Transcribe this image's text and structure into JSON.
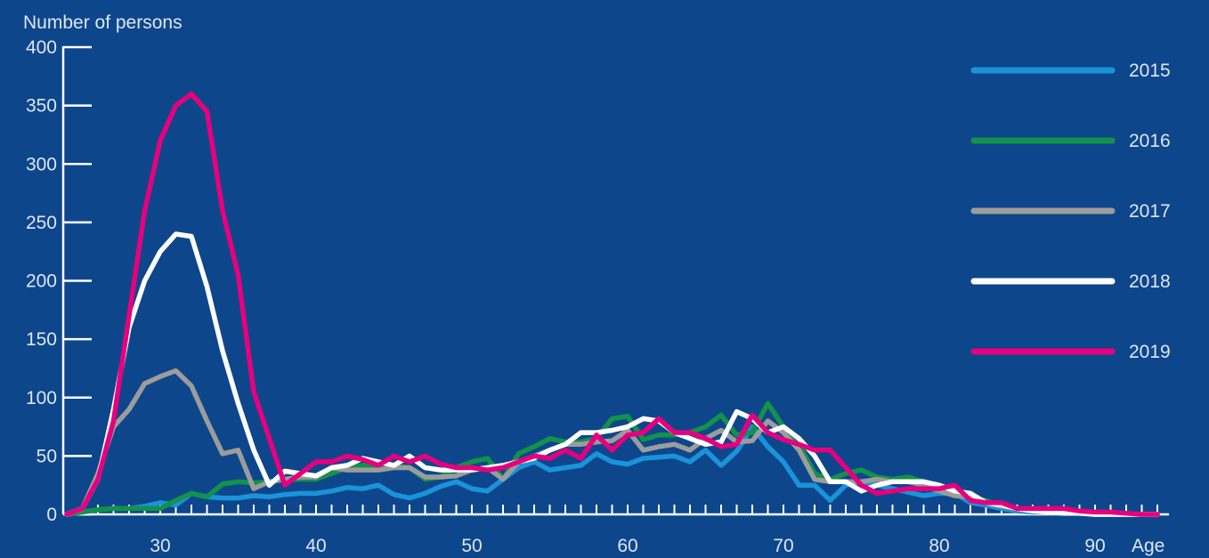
{
  "chart_data": {
    "type": "line",
    "title": "",
    "ylabel": "Number of persons",
    "xlabel": "Age",
    "xlim": [
      24,
      94
    ],
    "ylim": [
      0,
      400
    ],
    "x_ticks": [
      30,
      40,
      50,
      60,
      70,
      80,
      90
    ],
    "y_ticks": [
      0,
      50,
      100,
      150,
      200,
      250,
      300,
      350,
      400
    ],
    "grid": false,
    "legend_position": "right",
    "x": [
      24,
      25,
      26,
      27,
      28,
      29,
      30,
      31,
      32,
      33,
      34,
      35,
      36,
      37,
      38,
      39,
      40,
      41,
      42,
      43,
      44,
      45,
      46,
      47,
      48,
      49,
      50,
      51,
      52,
      53,
      54,
      55,
      56,
      57,
      58,
      59,
      60,
      61,
      62,
      63,
      64,
      65,
      66,
      67,
      68,
      69,
      70,
      71,
      72,
      73,
      74,
      75,
      76,
      77,
      78,
      79,
      80,
      81,
      82,
      83,
      84,
      85,
      86,
      87,
      88,
      89,
      90,
      91,
      92,
      93,
      94
    ],
    "series": [
      {
        "name": "2015",
        "color": "#1a93d9",
        "values": [
          0,
          2,
          4,
          5,
          5,
          7,
          10,
          8,
          18,
          15,
          14,
          14,
          16,
          15,
          17,
          18,
          18,
          20,
          23,
          22,
          25,
          17,
          14,
          18,
          24,
          28,
          22,
          20,
          30,
          40,
          45,
          38,
          40,
          42,
          52,
          45,
          43,
          48,
          49,
          50,
          45,
          55,
          42,
          54,
          75,
          58,
          45,
          25,
          25,
          12,
          25,
          28,
          25,
          22,
          19,
          16,
          18,
          18,
          10,
          8,
          5,
          3,
          2,
          2,
          1,
          1,
          0,
          0,
          0,
          0,
          0
        ]
      },
      {
        "name": "2016",
        "color": "#12924a",
        "values": [
          0,
          2,
          4,
          5,
          5,
          5,
          5,
          12,
          18,
          15,
          26,
          28,
          27,
          28,
          30,
          30,
          30,
          35,
          40,
          42,
          42,
          42,
          40,
          30,
          32,
          40,
          45,
          48,
          30,
          52,
          58,
          65,
          62,
          62,
          65,
          82,
          84,
          64,
          68,
          68,
          70,
          75,
          85,
          68,
          70,
          95,
          75,
          60,
          35,
          30,
          35,
          38,
          32,
          30,
          32,
          28,
          25,
          20,
          15,
          12,
          7,
          5,
          3,
          2,
          1,
          1,
          0,
          0,
          0,
          0,
          0
        ]
      },
      {
        "name": "2017",
        "color": "#9c9c9c",
        "values": [
          0,
          5,
          35,
          75,
          90,
          112,
          118,
          123,
          110,
          80,
          52,
          55,
          22,
          28,
          30,
          32,
          32,
          40,
          38,
          38,
          38,
          40,
          40,
          32,
          32,
          33,
          38,
          40,
          30,
          45,
          50,
          55,
          60,
          60,
          62,
          63,
          72,
          55,
          58,
          60,
          55,
          65,
          72,
          62,
          63,
          80,
          70,
          55,
          30,
          28,
          28,
          28,
          30,
          28,
          28,
          25,
          20,
          16,
          15,
          10,
          7,
          5,
          3,
          2,
          1,
          1,
          0,
          0,
          0,
          0,
          0
        ]
      },
      {
        "name": "2018",
        "color": "#ffffff",
        "values": [
          0,
          5,
          30,
          90,
          160,
          200,
          225,
          240,
          238,
          195,
          140,
          95,
          55,
          25,
          37,
          35,
          33,
          40,
          42,
          48,
          45,
          42,
          50,
          40,
          38,
          38,
          38,
          40,
          42,
          45,
          48,
          55,
          60,
          70,
          70,
          72,
          75,
          82,
          80,
          70,
          65,
          60,
          62,
          88,
          82,
          70,
          75,
          65,
          50,
          28,
          28,
          20,
          25,
          28,
          28,
          28,
          25,
          20,
          18,
          10,
          8,
          5,
          3,
          2,
          1,
          1,
          0,
          0,
          0,
          0,
          0
        ]
      },
      {
        "name": "2019",
        "color": "#e6007e",
        "values": [
          0,
          5,
          30,
          80,
          170,
          260,
          320,
          350,
          360,
          345,
          260,
          205,
          105,
          65,
          25,
          35,
          45,
          45,
          50,
          47,
          42,
          50,
          45,
          50,
          43,
          40,
          40,
          38,
          40,
          45,
          50,
          48,
          55,
          48,
          68,
          55,
          68,
          70,
          82,
          70,
          70,
          65,
          58,
          60,
          85,
          70,
          64,
          60,
          55,
          55,
          40,
          25,
          18,
          20,
          22,
          22,
          22,
          25,
          12,
          10,
          10,
          5,
          5,
          5,
          5,
          3,
          2,
          2,
          1,
          0,
          0
        ]
      }
    ]
  }
}
